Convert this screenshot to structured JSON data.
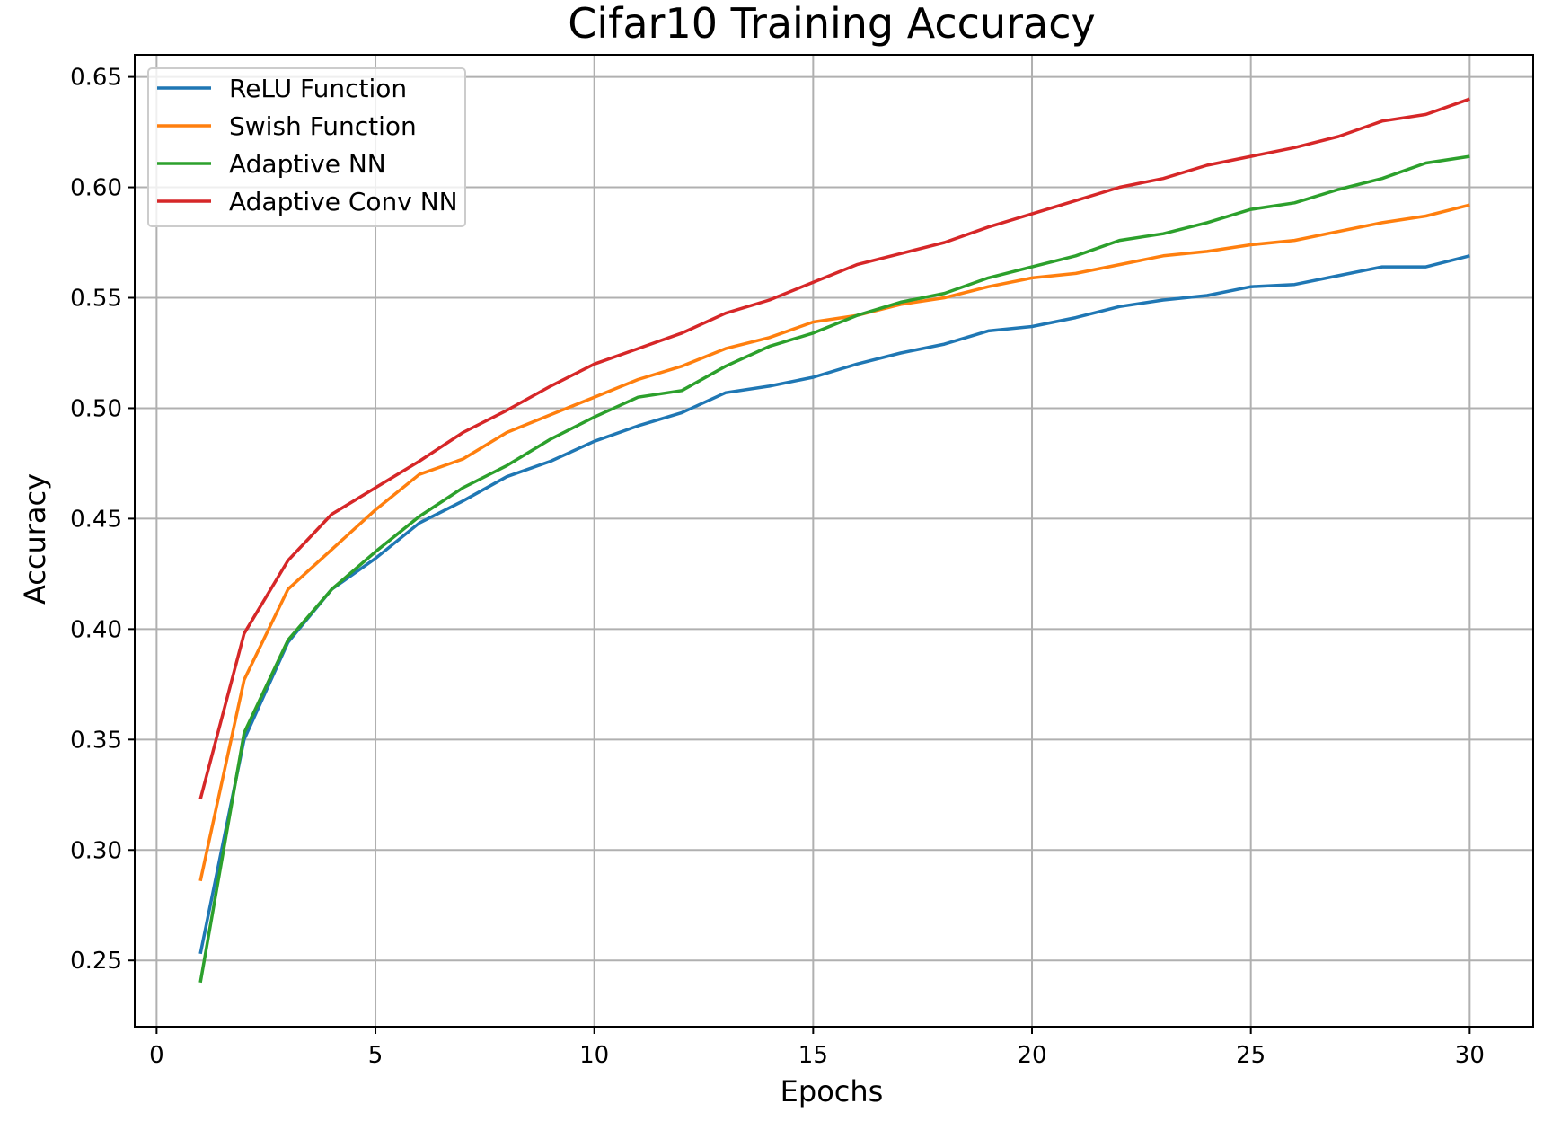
{
  "chart_data": {
    "type": "line",
    "title": "Cifar10 Training Accuracy",
    "xlabel": "Epochs",
    "ylabel": "Accuracy",
    "xlim": [
      -0.5,
      31.45
    ],
    "ylim": [
      0.22,
      0.66
    ],
    "xticks": [
      0,
      5,
      10,
      15,
      20,
      25,
      30
    ],
    "xtick_labels": [
      "0",
      "5",
      "10",
      "15",
      "20",
      "25",
      "30"
    ],
    "yticks": [
      0.25,
      0.3,
      0.35,
      0.4,
      0.45,
      0.5,
      0.55,
      0.6,
      0.65
    ],
    "ytick_labels": [
      "0.25",
      "0.30",
      "0.35",
      "0.40",
      "0.45",
      "0.50",
      "0.55",
      "0.60",
      "0.65"
    ],
    "grid": true,
    "legend_position": "top-left",
    "x": [
      1,
      2,
      3,
      4,
      5,
      6,
      7,
      8,
      9,
      10,
      11,
      12,
      13,
      14,
      15,
      16,
      17,
      18,
      19,
      20,
      21,
      22,
      23,
      24,
      25,
      26,
      27,
      28,
      29,
      30
    ],
    "series": [
      {
        "name": "ReLU Function",
        "color": "#1f77b4",
        "values": [
          0.253,
          0.35,
          0.394,
          0.418,
          0.432,
          0.448,
          0.458,
          0.469,
          0.476,
          0.485,
          0.492,
          0.498,
          0.507,
          0.51,
          0.514,
          0.52,
          0.525,
          0.529,
          0.535,
          0.537,
          0.541,
          0.546,
          0.549,
          0.551,
          0.555,
          0.556,
          0.56,
          0.564,
          0.564,
          0.569
        ]
      },
      {
        "name": "Swish Function",
        "color": "#ff7f0e",
        "values": [
          0.286,
          0.377,
          0.418,
          0.436,
          0.454,
          0.47,
          0.477,
          0.489,
          0.497,
          0.505,
          0.513,
          0.519,
          0.527,
          0.532,
          0.539,
          0.542,
          0.547,
          0.55,
          0.555,
          0.559,
          0.561,
          0.565,
          0.569,
          0.571,
          0.574,
          0.576,
          0.58,
          0.584,
          0.587,
          0.592
        ]
      },
      {
        "name": "Adaptive NN",
        "color": "#2ca02c",
        "values": [
          0.24,
          0.353,
          0.395,
          0.418,
          0.435,
          0.451,
          0.464,
          0.474,
          0.486,
          0.496,
          0.505,
          0.508,
          0.519,
          0.528,
          0.534,
          0.542,
          0.548,
          0.552,
          0.559,
          0.564,
          0.569,
          0.576,
          0.579,
          0.584,
          0.59,
          0.593,
          0.599,
          0.604,
          0.611,
          0.614
        ]
      },
      {
        "name": "Adaptive Conv NN",
        "color": "#d62728",
        "values": [
          0.323,
          0.398,
          0.431,
          0.452,
          0.464,
          0.476,
          0.489,
          0.499,
          0.51,
          0.52,
          0.527,
          0.534,
          0.543,
          0.549,
          0.557,
          0.565,
          0.57,
          0.575,
          0.582,
          0.588,
          0.594,
          0.6,
          0.604,
          0.61,
          0.614,
          0.618,
          0.623,
          0.63,
          0.633,
          0.64
        ]
      }
    ]
  }
}
